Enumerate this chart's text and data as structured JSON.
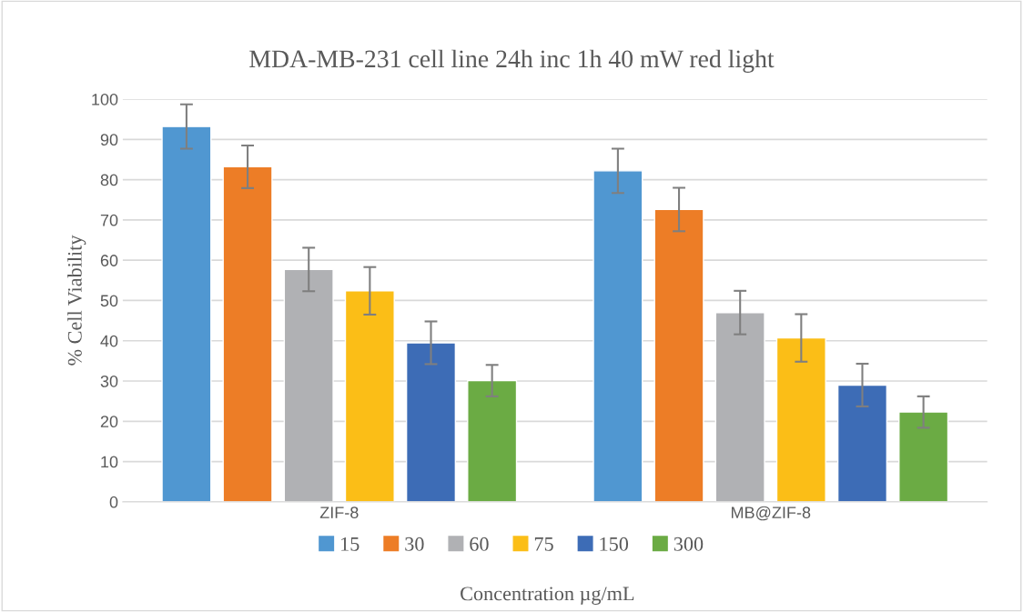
{
  "chart_data": {
    "type": "bar",
    "title": "MDA-MB-231 cell line 24h inc 1h 40 mW red light",
    "xlabel": "Concentration µg/mL",
    "ylabel": "% Cell Viability",
    "categories": [
      "ZIF-8",
      "MB@ZIF-8"
    ],
    "series": [
      {
        "name": "15",
        "color": "#5097d1",
        "values": [
          93.2,
          82.2
        ],
        "errors": [
          5.5,
          5.5
        ]
      },
      {
        "name": "30",
        "color": "#ed7d26",
        "values": [
          83.2,
          72.6
        ],
        "errors": [
          5.3,
          5.4
        ]
      },
      {
        "name": "60",
        "color": "#b0b1b4",
        "values": [
          57.7,
          47.0
        ],
        "errors": [
          5.4,
          5.4
        ]
      },
      {
        "name": "75",
        "color": "#fbbe17",
        "values": [
          52.4,
          40.7
        ],
        "errors": [
          5.9,
          5.9
        ]
      },
      {
        "name": "150",
        "color": "#3d6cb6",
        "values": [
          39.5,
          29.0
        ],
        "errors": [
          5.3,
          5.3
        ]
      },
      {
        "name": "300",
        "color": "#6bab44",
        "values": [
          30.1,
          22.3
        ],
        "errors": [
          3.9,
          3.9
        ]
      }
    ],
    "ylim": [
      0,
      100
    ],
    "yticks": [
      0,
      10,
      20,
      30,
      40,
      50,
      60,
      70,
      80,
      90,
      100
    ],
    "grid": "y",
    "legend": "bottom"
  }
}
